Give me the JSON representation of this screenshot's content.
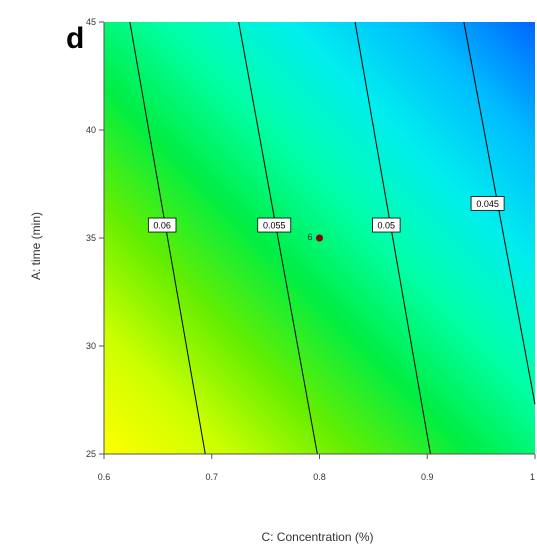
{
  "panel_label": "d",
  "chart_data": {
    "type": "heatmap",
    "subtype": "contour",
    "title": "",
    "xlabel": "C: Concentration (%)",
    "ylabel": "A: time (min)",
    "xlim": [
      0.6,
      1
    ],
    "ylim": [
      25,
      45
    ],
    "x_ticks": [
      0.6,
      0.7,
      0.8,
      0.9,
      1
    ],
    "x_tick_labels": [
      "0.6",
      "0.7",
      "0.8",
      "0.9",
      "1"
    ],
    "y_ticks": [
      25,
      30,
      35,
      40,
      45
    ],
    "y_tick_labels": [
      "25",
      "30",
      "35",
      "40",
      "45"
    ],
    "grid": false,
    "legend": "none",
    "colormap": [
      "#ffff00",
      "#ccff00",
      "#66ee00",
      "#00ee44",
      "#00ffaa",
      "#00eeee",
      "#00bbff",
      "#0066ff"
    ],
    "contour_color": "#000000",
    "contours": [
      {
        "label": "0.06",
        "x_at_ymin": 0.694,
        "x_at_ymax": 0.624,
        "label_at": [
          0.654,
          35.6
        ]
      },
      {
        "label": "0.055",
        "x_at_ymin": 0.798,
        "x_at_ymax": 0.725,
        "label_at": [
          0.758,
          35.6
        ]
      },
      {
        "label": "0.05",
        "x_at_ymin": 0.903,
        "x_at_ymax": 0.833,
        "label_at": [
          0.862,
          35.6
        ]
      },
      {
        "label": "0.045",
        "x_at_ymin": 1.0,
        "x_at_ymax": 0.934,
        "y_at_xmax": 27.3,
        "label_at": [
          0.956,
          36.6
        ]
      }
    ],
    "design_points": [
      {
        "x": 0.8,
        "y": 35,
        "label": "6",
        "color": "#8b0000"
      }
    ]
  }
}
